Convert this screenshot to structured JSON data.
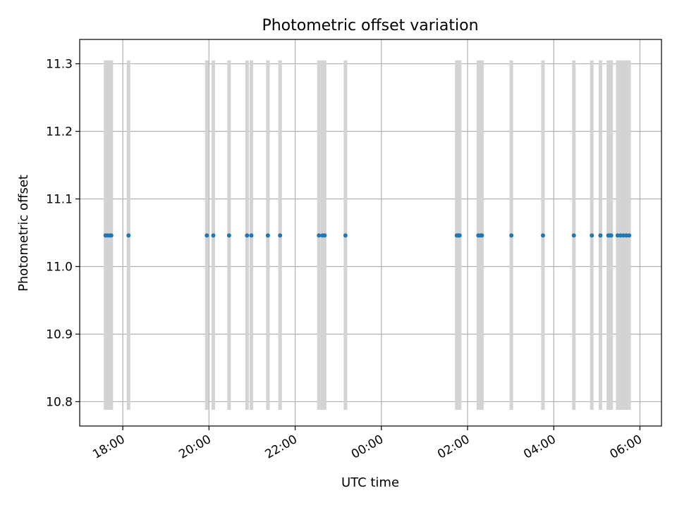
{
  "chart_data": {
    "type": "scatter",
    "title": "Photometric offset variation",
    "xlabel": "UTC time",
    "ylabel": "Photometric offset",
    "x_axis": {
      "kind": "time",
      "range": [
        "17:00",
        "06:30"
      ],
      "ticks": [
        "18:00",
        "20:00",
        "22:00",
        "00:00",
        "02:00",
        "04:00",
        "06:00"
      ]
    },
    "y_axis": {
      "range": [
        10.764,
        11.336
      ],
      "ticks": [
        "10.8",
        "10.9",
        "11.0",
        "11.1",
        "11.2",
        "11.3"
      ]
    },
    "grid": true,
    "series": [
      {
        "marker_color": "#1f77b4",
        "error_bar_color": "#d3d3d3",
        "error_bar_range": [
          10.788,
          11.305
        ],
        "y_value": 11.046,
        "x": [
          "17:36",
          "17:39",
          "17:42",
          "17:44",
          "18:08",
          "19:57",
          "20:06",
          "20:28",
          "20:53",
          "20:59",
          "21:22",
          "21:39",
          "22:33",
          "22:38",
          "22:41",
          "23:10",
          "01:45",
          "01:47",
          "01:49",
          "02:15",
          "02:18",
          "02:20",
          "03:01",
          "03:45",
          "04:28",
          "04:53",
          "05:05",
          "05:16",
          "05:18",
          "05:20",
          "05:29",
          "05:33",
          "05:37",
          "05:41",
          "05:45"
        ]
      }
    ]
  }
}
